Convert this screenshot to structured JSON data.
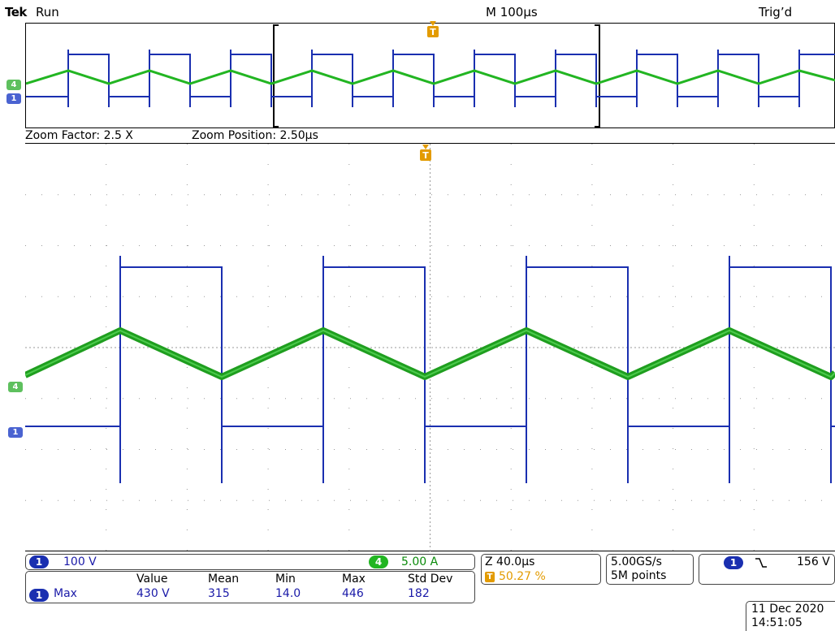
{
  "header": {
    "brand": "Tek",
    "run_state": "Run",
    "timebase": "M 100µs",
    "trigger_state": "Trig’d"
  },
  "zoom": {
    "factor": "Zoom Factor: 2.5 X",
    "position": "Zoom Position: 2.50µs"
  },
  "markers": {
    "trigger": "T",
    "ch1": "1",
    "ch4": "4"
  },
  "channels": {
    "ch1": {
      "number": "1",
      "scale": "100 V",
      "color": "#1a2fb0"
    },
    "ch4": {
      "number": "4",
      "scale": "5.00 A",
      "color": "#22b522"
    }
  },
  "horizontal": {
    "zoom_time": "Z 40.0µs",
    "trigger_pos": "50.27 %"
  },
  "acquisition": {
    "sample_rate": "5.00GS/s",
    "record_length": "5M points"
  },
  "trigger": {
    "source": "1",
    "slope_symbol": "⌥",
    "level": "156 V"
  },
  "measurements": {
    "headers": [
      "Value",
      "Mean",
      "Min",
      "Max",
      "Std Dev"
    ],
    "rows": [
      {
        "channel": "1",
        "name": "Max",
        "values": [
          "430 V",
          "315",
          "14.0",
          "446",
          "182"
        ]
      }
    ]
  },
  "datetime": {
    "date": "11 Dec  2020",
    "time": "14:51:05"
  }
}
